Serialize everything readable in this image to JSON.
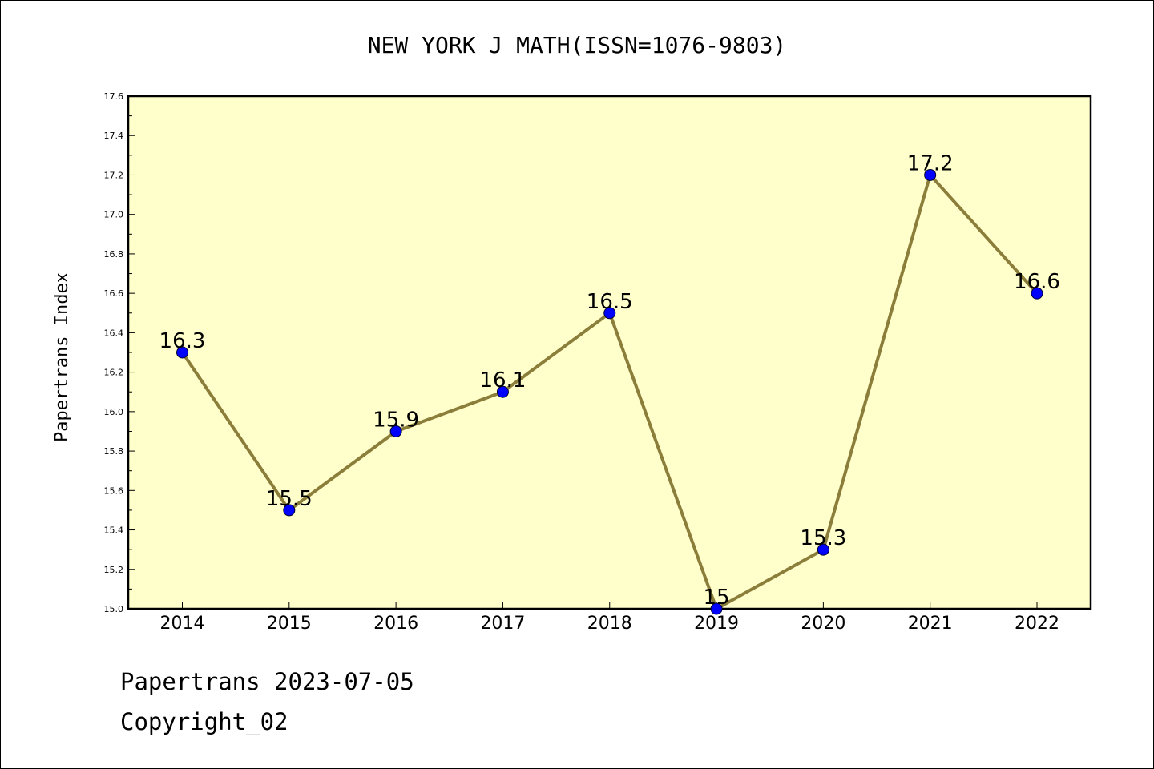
{
  "chart_data": {
    "type": "line",
    "title": "NEW YORK J MATH(ISSN=1076-9803)",
    "ylabel": "Papertrans Index",
    "xlabel": "",
    "categories": [
      "2014",
      "2015",
      "2016",
      "2017",
      "2018",
      "2019",
      "2020",
      "2021",
      "2022"
    ],
    "values": [
      16.3,
      15.5,
      15.9,
      16.1,
      16.5,
      15.0,
      15.3,
      17.2,
      16.6
    ],
    "data_labels": [
      "16.3",
      "15.5",
      "15.9",
      "16.1",
      "16.5",
      "15",
      "15.3",
      "17.2",
      "16.6"
    ],
    "ylim": [
      15.0,
      17.6
    ],
    "yticks": [
      "15.0",
      "15.2",
      "15.4",
      "15.6",
      "15.8",
      "16.0",
      "16.2",
      "16.4",
      "16.6",
      "16.8",
      "17.0",
      "17.2",
      "17.4",
      "17.6"
    ],
    "grid": false,
    "colors": {
      "plot_background": "#ffffcc",
      "line": "#8b7d3a",
      "marker": "#0000ff"
    }
  },
  "footer": {
    "date_line": "Papertrans 2023-07-05",
    "copyright": "Copyright_02"
  }
}
